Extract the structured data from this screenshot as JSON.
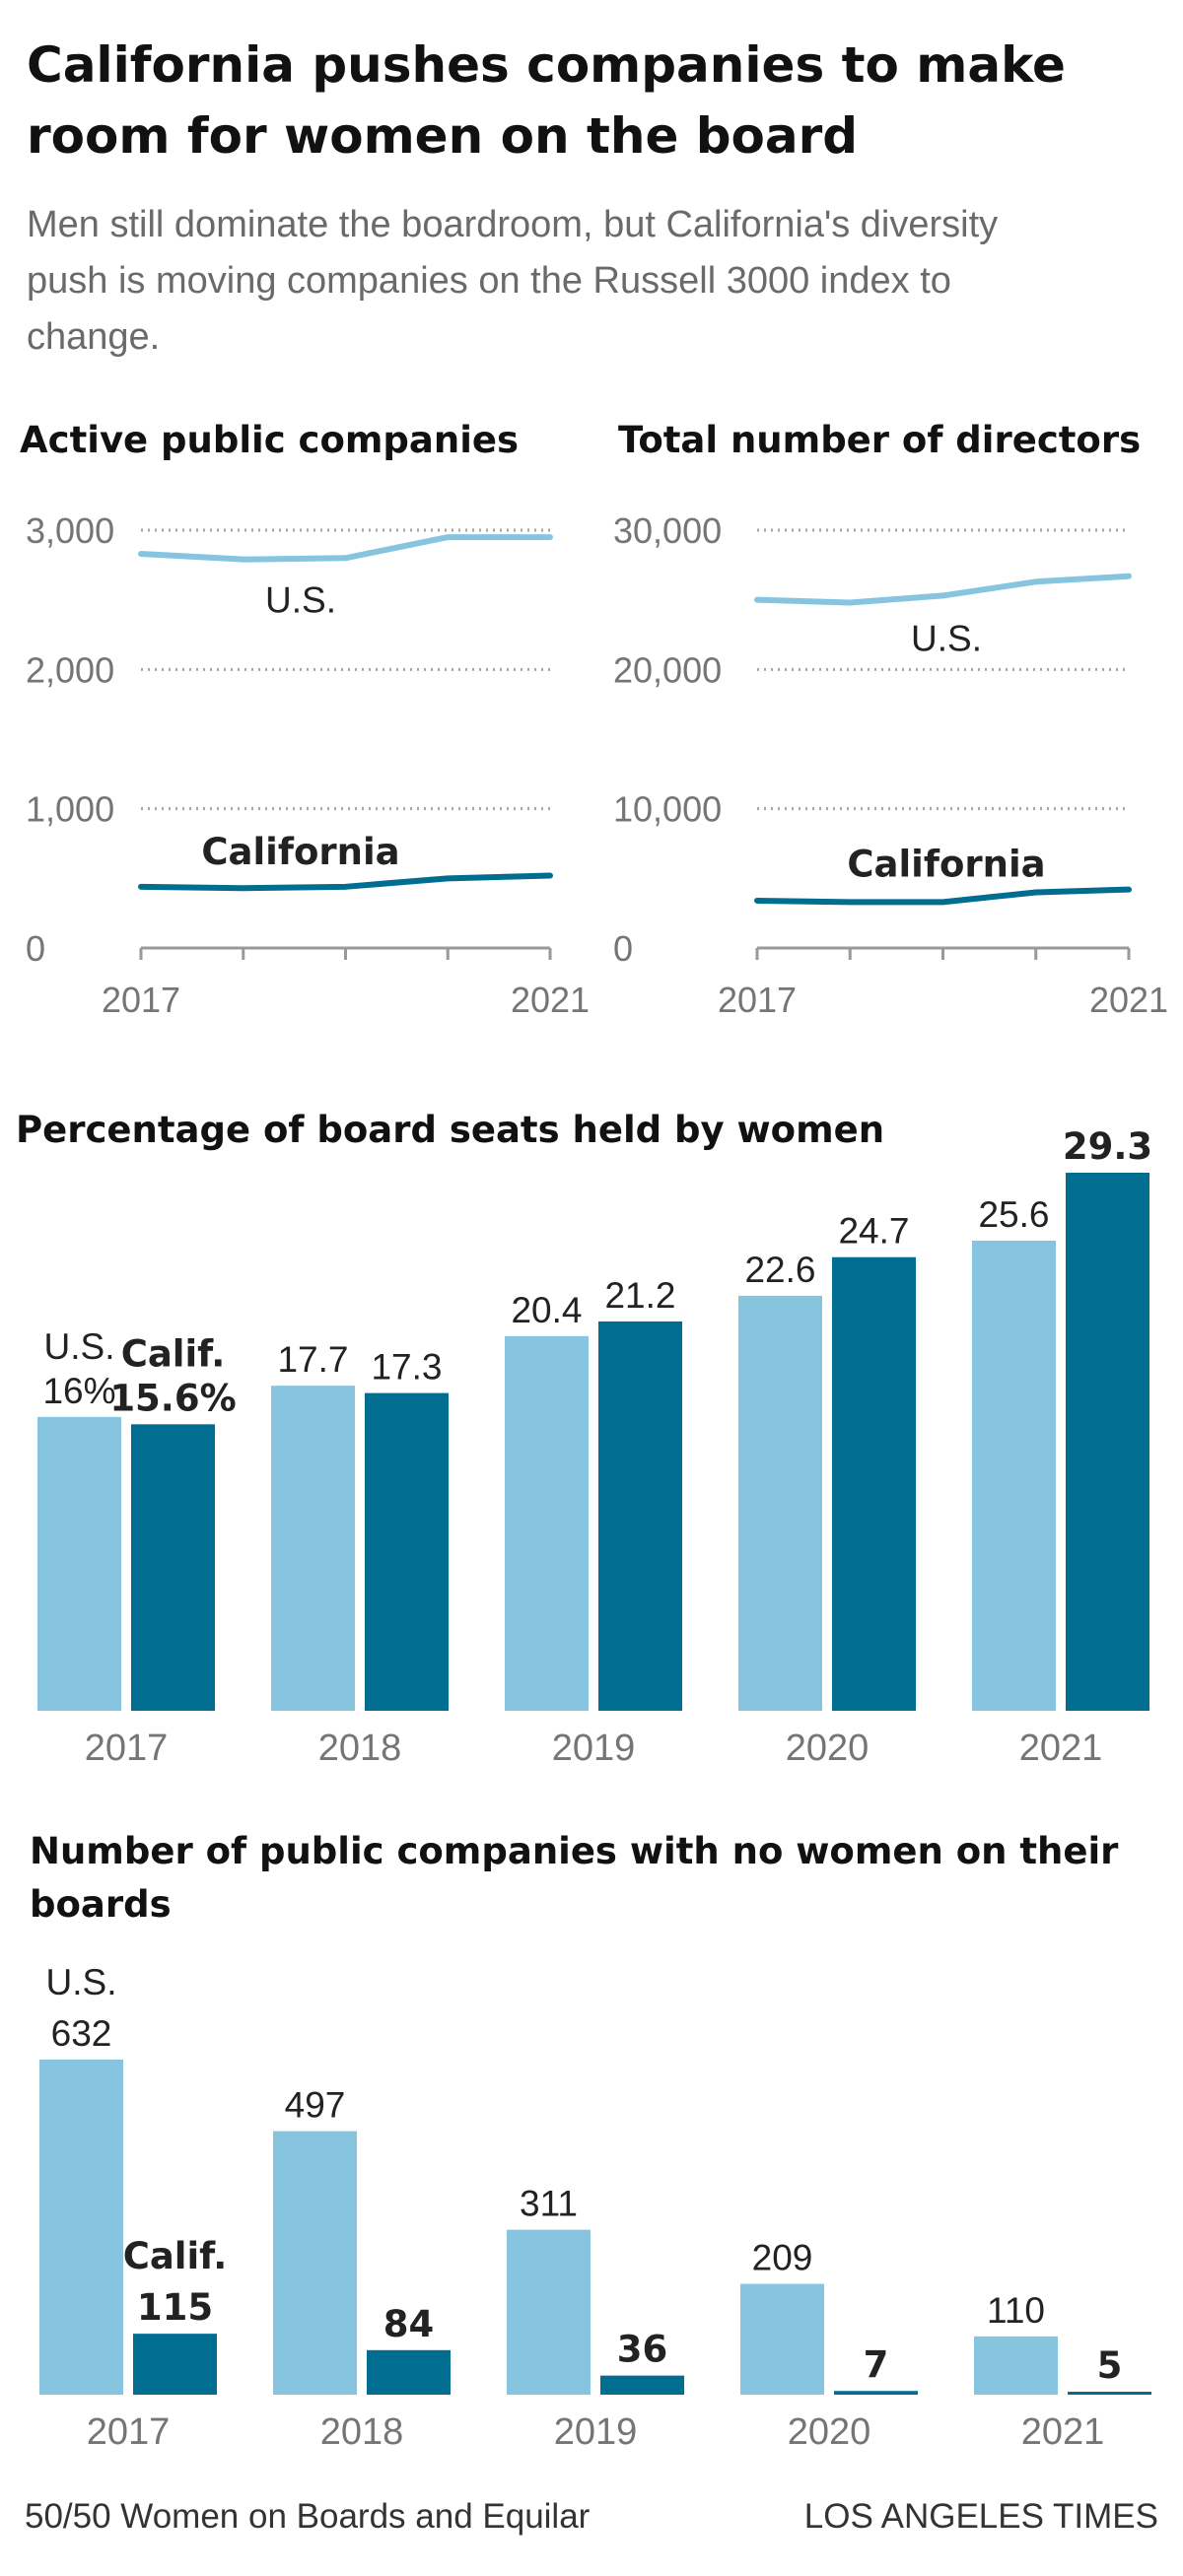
{
  "header": {
    "title": "California pushes companies to make room for women on the board",
    "subtitle": "Men still dominate the boardroom, but California's diversity push is moving companies on the Russell 3000 index to change."
  },
  "colors": {
    "us": "#86c4df",
    "california": "#006d91",
    "axis": "#999999",
    "grid": "#a5a5a5",
    "tick_text": "#757575",
    "label": "#222222"
  },
  "chart_data": [
    {
      "id": "companies",
      "type": "line",
      "title": "Active public companies",
      "x": [
        2017,
        2018,
        2019,
        2020,
        2021
      ],
      "x_tick_labels": [
        "2017",
        "2021"
      ],
      "y_ticks": [
        0,
        1000,
        2000,
        3000
      ],
      "y_tick_labels": [
        "0",
        "1,000",
        "2,000",
        "3,000"
      ],
      "ylim": [
        0,
        3000
      ],
      "series": [
        {
          "name": "U.S.",
          "values": [
            2830,
            2790,
            2800,
            2950,
            2950
          ]
        },
        {
          "name": "California",
          "values": [
            440,
            430,
            440,
            500,
            520
          ]
        }
      ]
    },
    {
      "id": "directors",
      "type": "line",
      "title": "Total number of directors",
      "x": [
        2017,
        2018,
        2019,
        2020,
        2021
      ],
      "x_tick_labels": [
        "2017",
        "2021"
      ],
      "y_ticks": [
        0,
        10000,
        20000,
        30000
      ],
      "y_tick_labels": [
        "0",
        "10,000",
        "20,000",
        "30,000"
      ],
      "ylim": [
        0,
        30000
      ],
      "series": [
        {
          "name": "U.S.",
          "values": [
            25000,
            24800,
            25300,
            26300,
            26700
          ]
        },
        {
          "name": "California",
          "values": [
            3400,
            3300,
            3300,
            4000,
            4200
          ]
        }
      ]
    },
    {
      "id": "seats",
      "type": "bar",
      "title": "Percentage of board seats held by women",
      "categories": [
        "2017",
        "2018",
        "2019",
        "2020",
        "2021"
      ],
      "ylim": [
        0,
        29.3
      ],
      "series": [
        {
          "name": "U.S.",
          "values": [
            16,
            17.7,
            20.4,
            22.6,
            25.6
          ],
          "labels": [
            "16%",
            "17.7",
            "20.4",
            "22.6",
            "25.6"
          ],
          "first_prefix": "U.S."
        },
        {
          "name": "California",
          "values": [
            15.6,
            17.3,
            21.2,
            24.7,
            29.3
          ],
          "labels": [
            "15.6%",
            "17.3",
            "21.2",
            "24.7",
            "29.3"
          ],
          "first_prefix": "Calif."
        }
      ]
    },
    {
      "id": "nowomen",
      "type": "bar",
      "title": "Number of public companies with no women on their boards",
      "categories": [
        "2017",
        "2018",
        "2019",
        "2020",
        "2021"
      ],
      "ylim": [
        0,
        632
      ],
      "series": [
        {
          "name": "U.S.",
          "values": [
            632,
            497,
            311,
            209,
            110
          ],
          "labels": [
            "632",
            "497",
            "311",
            "209",
            "110"
          ],
          "first_prefix": "U.S."
        },
        {
          "name": "California",
          "values": [
            115,
            84,
            36,
            7,
            5
          ],
          "labels": [
            "115",
            "84",
            "36",
            "7",
            "5"
          ],
          "first_prefix": "Calif."
        }
      ]
    }
  ],
  "footer": {
    "source": "50/50 Women on Boards and Equilar",
    "credit": "LOS ANGELES TIMES"
  }
}
